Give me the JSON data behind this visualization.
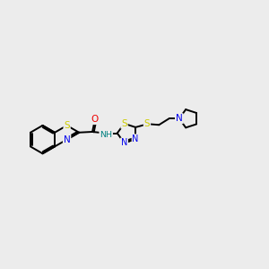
{
  "background_color": "#ececec",
  "bond_color": "#000000",
  "atom_colors": {
    "S": "#cccc00",
    "N": "#0000ee",
    "O": "#ee0000",
    "H": "#008080",
    "C": "#000000"
  },
  "figsize": [
    3.0,
    3.0
  ],
  "dpi": 100,
  "lw": 1.4,
  "off": 0.045
}
